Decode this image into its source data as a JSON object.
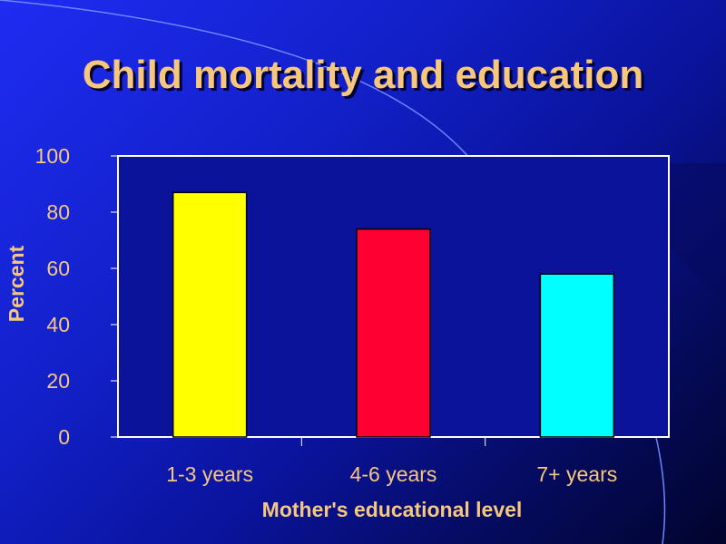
{
  "slide": {
    "title": "Child mortality and education"
  },
  "chart_data": {
    "type": "bar",
    "title": "",
    "xlabel": "Mother's educational level",
    "ylabel": "Percent",
    "categories": [
      "1-3 years",
      "4-6 years",
      "7+ years"
    ],
    "values": [
      87,
      74,
      58
    ],
    "bar_colors": [
      "#ffff00",
      "#ff0033",
      "#00ffff"
    ],
    "ylim": [
      0,
      100
    ],
    "yticks": [
      0,
      20,
      40,
      60,
      80,
      100
    ],
    "grid": false,
    "legend": "none",
    "plot_background": "#0a139a"
  }
}
